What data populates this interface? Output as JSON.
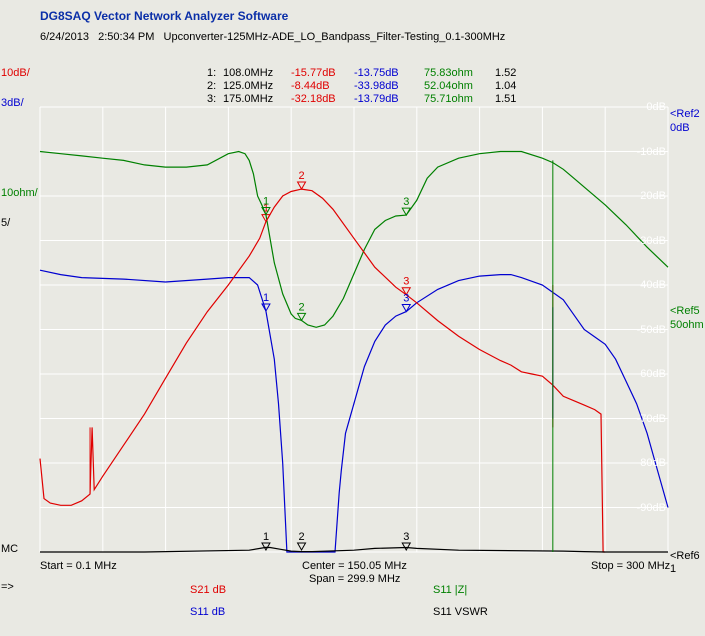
{
  "app": {
    "title": "DG8SAQ Vector Network Analyzer Software",
    "date": "6/24/2013",
    "time": "2:50:34 PM",
    "description": "Upconverter-125MHz-ADE_LO_Bandpass_Filter-Testing_0.1-300MHz"
  },
  "markers_table": [
    {
      "idx": "1:",
      "freq": "108.0MHz",
      "s21": "-15.77dB",
      "s11": "-13.75dB",
      "z": "75.83ohm",
      "vswr": "1.52"
    },
    {
      "idx": "2:",
      "freq": "125.0MHz",
      "s21": "-8.44dB",
      "s11": "-33.98dB",
      "z": "52.04ohm",
      "vswr": "1.04"
    },
    {
      "idx": "3:",
      "freq": "175.0MHz",
      "s21": "-32.18dB",
      "s11": "-13.79dB",
      "z": "75.71ohm",
      "vswr": "1.51"
    }
  ],
  "left_scales": {
    "s21": "10dB/",
    "s11": "3dB/",
    "z": "10ohm/",
    "vswr": "5/",
    "mc": "MC",
    "arrow": "=>"
  },
  "right_refs": {
    "ref2": "<Ref2",
    "ref2_val": "0dB",
    "ref5": "<Ref5",
    "ref5_val": "50ohm",
    "ref6": "<Ref6",
    "ref6_val": "1"
  },
  "footer": {
    "start": "Start = 0.1 MHz",
    "center": "Center = 150.05 MHz",
    "span": "Span = 299.9 MHz",
    "stop": "Stop = 300 MHz",
    "trace_s21": "S21  dB",
    "trace_s11": "S11  dB",
    "trace_z": "S11  |Z|",
    "trace_vswr": "S11  VSWR"
  },
  "colors": {
    "s21": "#e00000",
    "s11": "#0000d0",
    "z": "#008000",
    "vswr": "#000000",
    "grid": "#ffffff",
    "background": "#e9e9e3"
  },
  "chart_data": {
    "type": "line",
    "title": "",
    "xlabel": "",
    "ylabel": "",
    "x_unit": "MHz",
    "xlim": [
      0.1,
      300
    ],
    "s21_ylim": [
      -90,
      10
    ],
    "s21_ticks": [
      "0dB",
      "-10dB",
      "-20dB",
      "-30dB",
      "-40dB",
      "-50dB",
      "-60dB",
      "-70dB",
      "-80dB",
      "-90dB"
    ],
    "s11_ylim": [
      -30,
      0
    ],
    "z_ylim": [
      0,
      100
    ],
    "vswr_ylim": [
      1,
      51
    ],
    "markers": [
      {
        "label": "1",
        "freq": 108.0
      },
      {
        "label": "2",
        "freq": 125.0
      },
      {
        "label": "3",
        "freq": 175.0
      }
    ],
    "series": [
      {
        "name": "S21  dB",
        "unit": "dB",
        "color": "#e00000",
        "x": [
          0.1,
          2,
          5,
          10,
          15,
          20,
          24,
          25,
          26,
          30,
          40,
          50,
          60,
          70,
          80,
          90,
          100,
          105,
          108,
          112,
          116,
          120,
          125,
          130,
          135,
          140,
          150,
          160,
          170,
          175,
          180,
          190,
          200,
          210,
          220,
          225,
          230,
          235,
          240,
          245,
          250,
          255,
          260,
          265,
          268,
          269,
          270
        ],
        "y": [
          -69,
          -78,
          -79,
          -79.5,
          -79.5,
          -78.5,
          -77,
          -62,
          -76,
          -73,
          -66,
          -59,
          -51,
          -43,
          -36,
          -30,
          -23.5,
          -19.5,
          -15.77,
          -12.5,
          -10,
          -9,
          -8.44,
          -8.8,
          -10.5,
          -13,
          -19.5,
          -26,
          -30.5,
          -32.18,
          -34,
          -38,
          -41.5,
          -44.5,
          -47,
          -48,
          -49.5,
          -50,
          -50.5,
          -52.5,
          -55,
          -56,
          -57,
          -58,
          -59,
          -90,
          -90
        ]
      },
      {
        "name": "S11  dB",
        "unit": "dB",
        "color": "#0000d0",
        "x": [
          0.1,
          10,
          20,
          40,
          60,
          80,
          90,
          100,
          104,
          108,
          112,
          114,
          116,
          117,
          118,
          119,
          120,
          130,
          140,
          141,
          142,
          143,
          144,
          146,
          150,
          155,
          160,
          165,
          170,
          175,
          180,
          190,
          200,
          210,
          220,
          225,
          230,
          240,
          245,
          250,
          255,
          260,
          265,
          270,
          275,
          280,
          285,
          290,
          295,
          300
        ],
        "y": [
          -11,
          -11.3,
          -11.5,
          -11.6,
          -11.8,
          -11.6,
          -11.5,
          -11.5,
          -12,
          -13.75,
          -17,
          -20,
          -24,
          -27,
          -30,
          -30,
          -30,
          -30,
          -30,
          -30,
          -28,
          -26,
          -24.5,
          -22,
          -20,
          -17.5,
          -15.8,
          -14.7,
          -14.1,
          -13.79,
          -13.2,
          -12.3,
          -11.7,
          -11.4,
          -11.3,
          -11.3,
          -11.5,
          -12,
          -12.5,
          -13,
          -14,
          -15,
          -15.5,
          -16,
          -17,
          -18.5,
          -20,
          -22,
          -24.5,
          -27
        ]
      },
      {
        "name": "S11  |Z|",
        "unit": "ohm",
        "color": "#008000",
        "x": [
          0.1,
          10,
          20,
          30,
          40,
          50,
          60,
          70,
          80,
          90,
          95,
          98,
          100,
          102,
          104,
          106,
          108,
          112,
          116,
          120,
          122,
          125,
          128,
          132,
          136,
          140,
          145,
          150,
          155,
          160,
          165,
          170,
          175,
          180,
          185,
          190,
          200,
          210,
          220,
          230,
          240,
          245,
          250,
          255,
          260,
          270,
          280,
          290,
          300
        ],
        "y": [
          90,
          89.5,
          89,
          88.5,
          88,
          87,
          86.5,
          86.5,
          87,
          89.5,
          90,
          89.5,
          88,
          85,
          80,
          78,
          75.83,
          65,
          58,
          53.5,
          52.5,
          52.04,
          51,
          50.5,
          51,
          53,
          57,
          62.5,
          68,
          72.5,
          74.5,
          75.5,
          75.71,
          79,
          84,
          86.5,
          88.5,
          89.5,
          90,
          90,
          88.5,
          87.5,
          86,
          84,
          82,
          78,
          73.5,
          68.5,
          64
        ]
      },
      {
        "name": "S11  VSWR",
        "unit": "",
        "color": "#000000",
        "x": [
          0.1,
          50,
          100,
          108,
          110,
          115,
          120,
          125,
          130,
          150,
          160,
          175,
          180,
          200,
          250,
          260,
          270,
          280,
          300
        ],
        "y": [
          1,
          1,
          1.2,
          1.52,
          1.5,
          1.3,
          1.1,
          1.04,
          1.05,
          1.2,
          1.4,
          1.51,
          1.4,
          1.2,
          1.1,
          1.05,
          1,
          1,
          1
        ]
      }
    ]
  }
}
